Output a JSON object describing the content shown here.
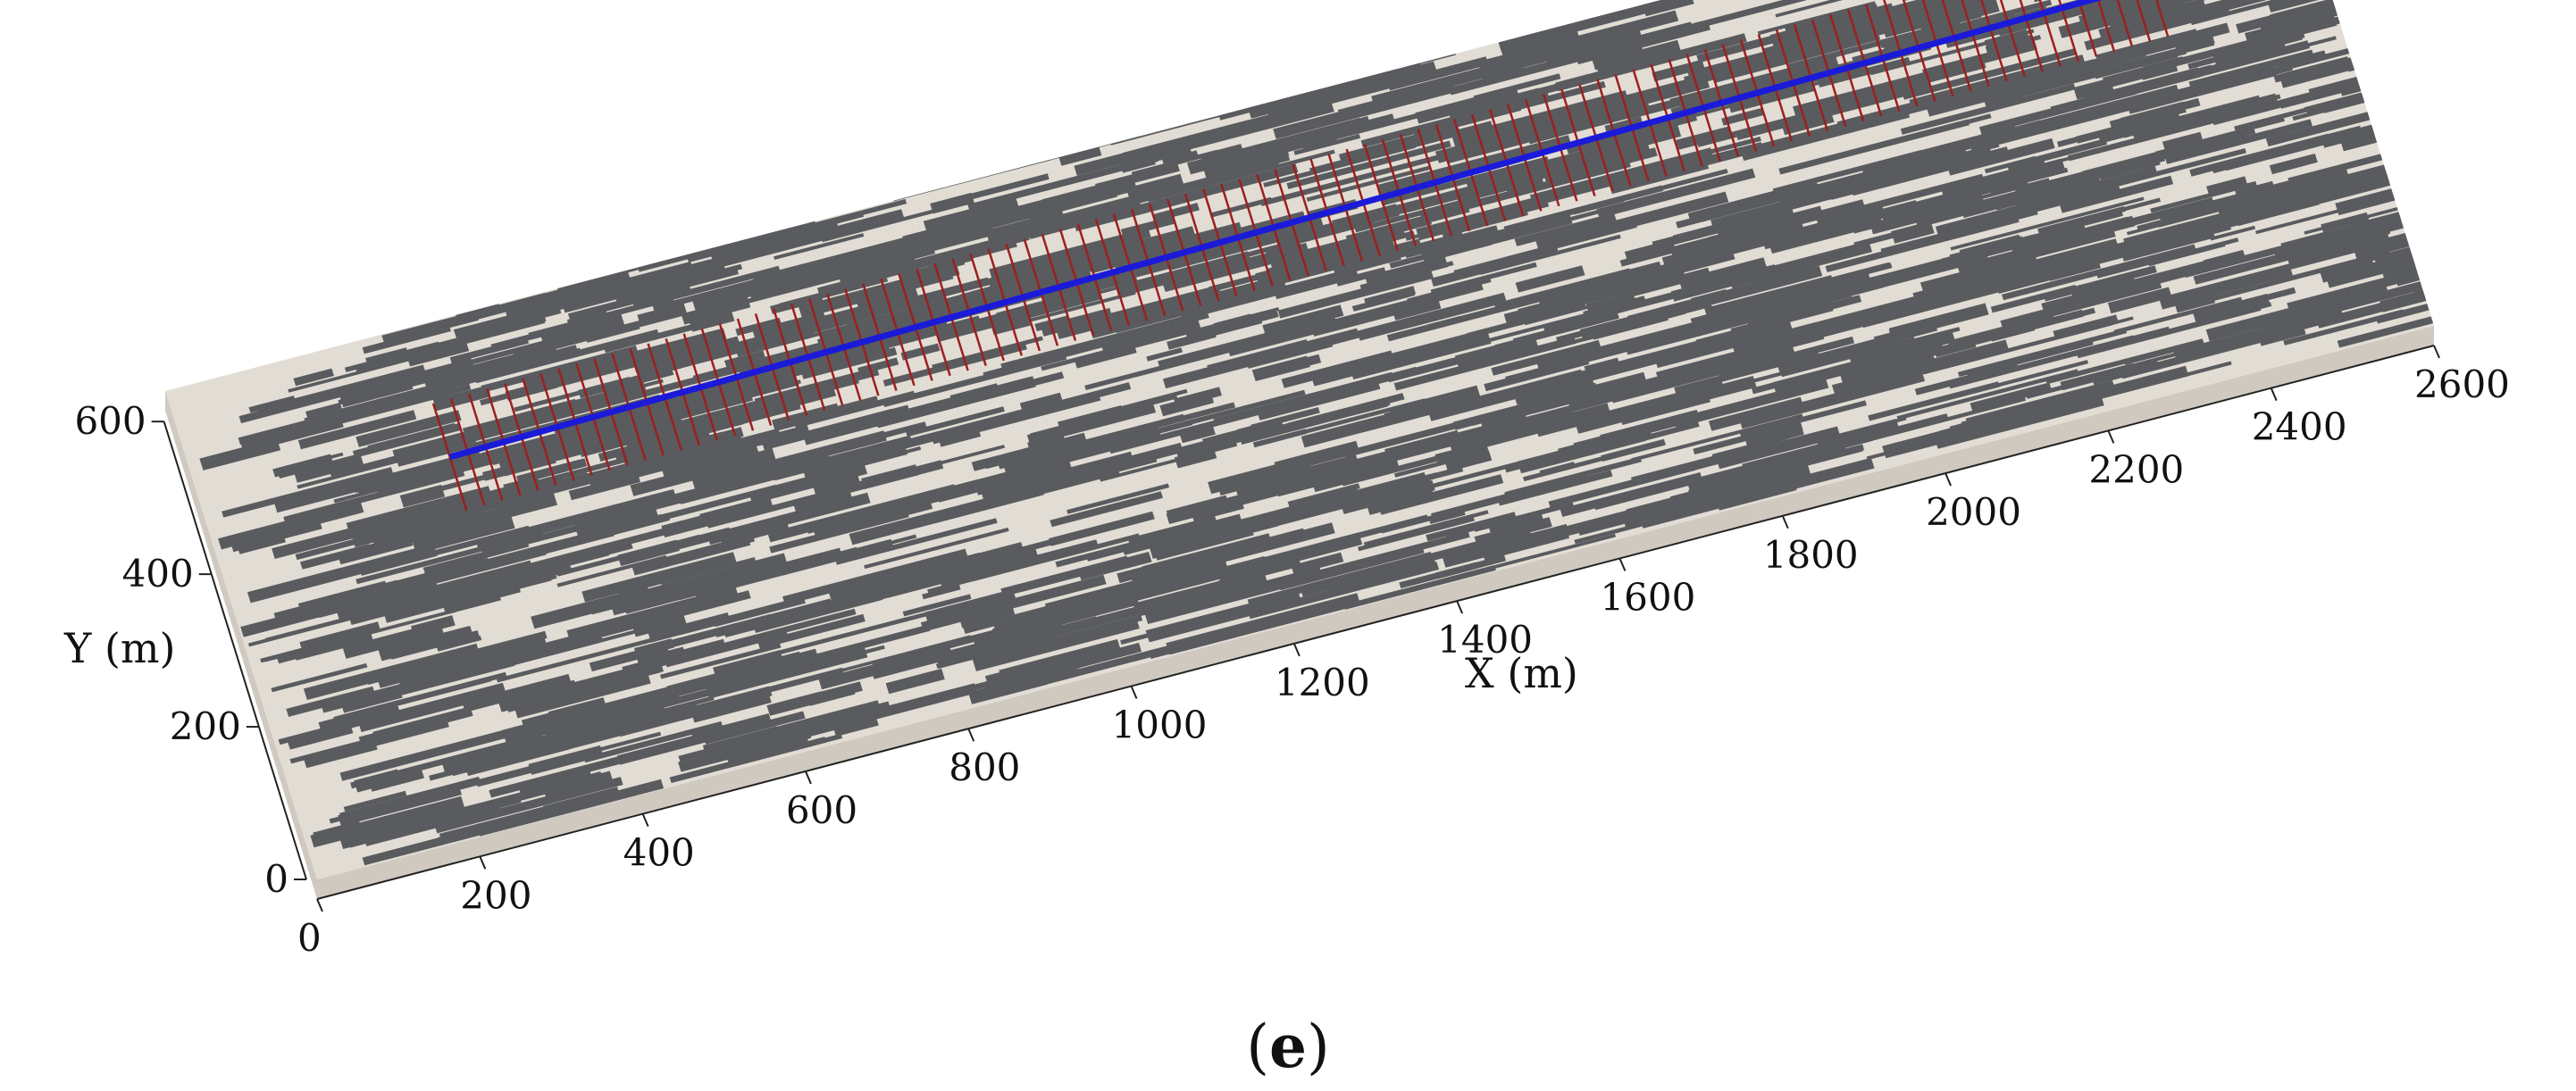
{
  "figure": {
    "panel_label_open": "(",
    "panel_label_letter": "e",
    "panel_label_close": ")"
  },
  "colors": {
    "background": "#ffffff",
    "slab_light": "#e2ddd4",
    "slab_dark": "#595b5f",
    "slab_side": "#cfc9c0",
    "well": "#1a1ad8",
    "fracture": "#9c1f1f"
  },
  "axes": {
    "x": {
      "label": "X (m)",
      "ticks": [
        "0",
        "200",
        "400",
        "600",
        "800",
        "1000",
        "1200",
        "1400",
        "1600",
        "1800",
        "2000",
        "2200",
        "2400",
        "2600"
      ],
      "tick_values": [
        0,
        200,
        400,
        600,
        800,
        1000,
        1200,
        1400,
        1600,
        1800,
        2000,
        2200,
        2400,
        2600
      ]
    },
    "y": {
      "label": "Y (m)",
      "ticks": [
        "0",
        "200",
        "400",
        "600"
      ],
      "tick_values": [
        0,
        200,
        400,
        600
      ]
    }
  },
  "model": {
    "x_range": [
      0,
      2600
    ],
    "y_range": [
      0,
      640
    ]
  },
  "well": {
    "x_start": 300,
    "x_end": 2400,
    "y_start": 470,
    "y_end": 505,
    "fracture_count": 96
  }
}
